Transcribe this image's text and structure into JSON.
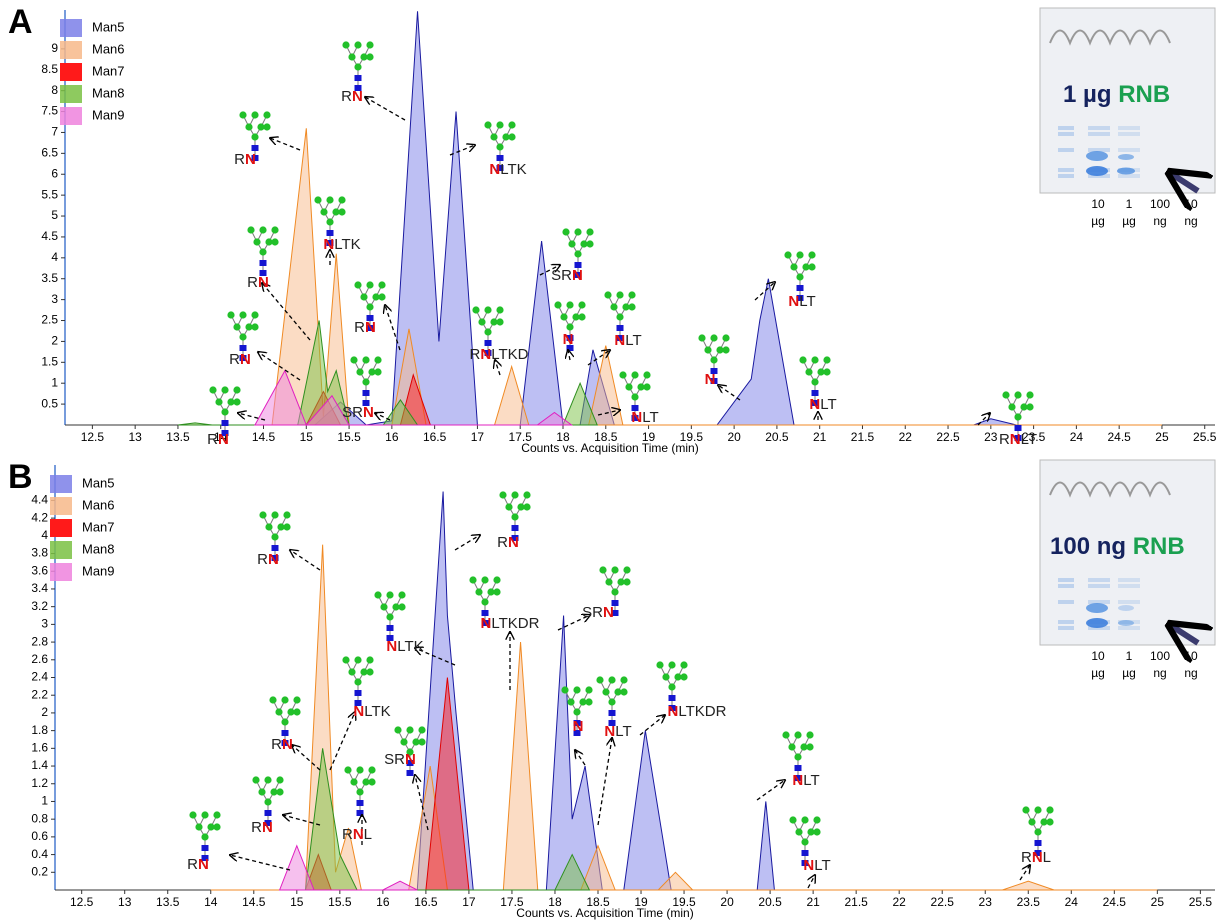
{
  "chart_data": [
    {
      "type": "area",
      "panel": "A",
      "xlabel": "Counts vs. Acquisition Time (min)",
      "xlim": [
        12.18,
        25.62
      ],
      "ylim": [
        0,
        9.93
      ],
      "xticks": [
        12.5,
        13,
        13.5,
        14,
        14.5,
        15,
        15.5,
        16,
        16.5,
        17,
        17.5,
        18,
        18.5,
        19,
        19.5,
        20,
        20.5,
        21,
        21.5,
        22,
        22.5,
        23,
        23.5,
        24,
        24.5,
        25,
        25.5
      ],
      "yticks": [
        0.5,
        1,
        1.5,
        2,
        2.5,
        3,
        3.5,
        4,
        4.5,
        5,
        5.5,
        6,
        6.5,
        7,
        7.5,
        8,
        8.5,
        9
      ],
      "series": [
        {
          "name": "Man5",
          "color": "#7b7fe8",
          "line_color": "#1a1aa0",
          "x": [
            15.1,
            15.4,
            15.7,
            16.0,
            16.3,
            16.55,
            16.75,
            17.0,
            17.5,
            17.75,
            18.0,
            18.2,
            18.35,
            18.6,
            19.8,
            20.2,
            20.3,
            20.4,
            20.7,
            22.8,
            23.0,
            23.3
          ],
          "values": [
            0,
            0.55,
            0,
            0.1,
            9.9,
            2.0,
            7.5,
            0,
            0,
            4.4,
            0,
            0,
            1.8,
            0,
            0,
            1.1,
            2.5,
            3.5,
            0,
            0,
            0.15,
            0
          ]
        },
        {
          "name": "Man6",
          "color": "#f7b98a",
          "line_color": "#f08a24",
          "x": [
            14.6,
            15.0,
            15.2,
            15.35,
            15.5,
            16.0,
            16.2,
            16.4,
            17.2,
            17.4,
            17.6,
            18.3,
            18.5,
            18.7,
            25.0
          ],
          "values": [
            0,
            7.1,
            0.2,
            4.1,
            0,
            0,
            2.3,
            0,
            0,
            1.4,
            0,
            0,
            1.9,
            0,
            0
          ]
        },
        {
          "name": "Man7",
          "color": "#ff1a1a",
          "line_color": "#e00000",
          "x": [
            15.0,
            15.2,
            15.4,
            16.1,
            16.25,
            16.45
          ],
          "values": [
            0,
            0.8,
            0,
            0,
            1.2,
            0
          ]
        },
        {
          "name": "Man8",
          "color": "#7ac143",
          "line_color": "#2f8f1f",
          "x": [
            13.5,
            13.7,
            13.9,
            14.9,
            15.15,
            15.25,
            15.35,
            15.5,
            15.9,
            16.1,
            16.3,
            18.0,
            18.2,
            18.4
          ],
          "values": [
            0,
            0.05,
            0,
            0,
            2.5,
            0.8,
            1.3,
            0,
            0,
            0.6,
            0,
            0,
            1.0,
            0
          ]
        },
        {
          "name": "Man9",
          "color": "#ee82dd",
          "line_color": "#e020c0",
          "x": [
            14.4,
            14.75,
            15.0,
            15.3,
            15.5,
            17.7,
            17.9,
            18.1
          ],
          "values": [
            0,
            1.3,
            0,
            0.7,
            0,
            0,
            0.3,
            0
          ]
        }
      ],
      "annotations": [
        "RN",
        "RN",
        "NLTK",
        "NLTK",
        "RN",
        "RN",
        "SRN",
        "RN",
        "RNLTKD",
        "NLT",
        "N",
        "SRN",
        "NLT",
        "N",
        "NLT",
        "NLT",
        "RN",
        "RNLT"
      ],
      "inset": {
        "amount": "1 µg",
        "protein": "RNB",
        "lanes": [
          {
            "amount": "10",
            "unit": "µg"
          },
          {
            "amount": "1",
            "unit": "µg"
          },
          {
            "amount": "100",
            "unit": "ng"
          },
          {
            "amount": "10",
            "unit": "ng"
          }
        ]
      }
    },
    {
      "type": "area",
      "panel": "B",
      "xlabel": "Counts vs. Acquisition Time (min)",
      "xlim": [
        12.19,
        25.67
      ],
      "ylim": [
        0,
        4.8
      ],
      "xticks": [
        12.5,
        13,
        13.5,
        14,
        14.5,
        15,
        15.5,
        16,
        16.5,
        17,
        17.5,
        18,
        18.5,
        19,
        19.5,
        20,
        20.5,
        21,
        21.5,
        22,
        22.5,
        23,
        23.5,
        24,
        24.5,
        25,
        25.5
      ],
      "yticks": [
        0.2,
        0.4,
        0.6,
        0.8,
        1,
        1.2,
        1.4,
        1.6,
        1.8,
        2,
        2.2,
        2.4,
        2.6,
        2.8,
        3,
        3.2,
        3.4,
        3.6,
        3.8,
        4,
        4.2,
        4.4
      ],
      "series": [
        {
          "name": "Man5",
          "color": "#7b7fe8",
          "line_color": "#1a1aa0",
          "x": [
            16.4,
            16.7,
            16.75,
            16.85,
            17.05,
            17.9,
            18.1,
            18.2,
            18.35,
            18.55,
            18.8,
            19.05,
            19.35,
            20.35,
            20.45,
            20.55
          ],
          "values": [
            0,
            4.5,
            3.1,
            2.0,
            0,
            0,
            3.1,
            0.8,
            1.4,
            0,
            0,
            1.8,
            0,
            0,
            1.0,
            0
          ]
        },
        {
          "name": "Man6",
          "color": "#f7b98a",
          "line_color": "#f08a24",
          "x": [
            14.0,
            15.1,
            15.3,
            15.45,
            15.6,
            15.75,
            16.3,
            16.55,
            16.75,
            17.4,
            17.6,
            17.8,
            18.3,
            18.5,
            18.7,
            19.2,
            19.4,
            19.6,
            23.2,
            23.5,
            23.8,
            25.0
          ],
          "values": [
            0,
            0,
            3.9,
            0.2,
            0.7,
            0,
            0,
            1.4,
            0,
            0,
            2.8,
            0,
            0,
            0.5,
            0,
            0,
            0.2,
            0,
            0,
            0.1,
            0,
            0
          ]
        },
        {
          "name": "Man7",
          "color": "#ff1a1a",
          "line_color": "#e00000",
          "x": [
            15.1,
            15.25,
            15.4,
            16.5,
            16.75,
            17.0
          ],
          "values": [
            0,
            0.4,
            0,
            0,
            2.4,
            0
          ]
        },
        {
          "name": "Man8",
          "color": "#7ac143",
          "line_color": "#2f8f1f",
          "x": [
            15.1,
            15.3,
            15.5,
            15.7,
            18.0,
            18.2,
            18.4
          ],
          "values": [
            0,
            1.6,
            0.4,
            0,
            0,
            0.4,
            0
          ]
        },
        {
          "name": "Man9",
          "color": "#ee82dd",
          "line_color": "#e020c0",
          "x": [
            14.8,
            15.0,
            15.2,
            16.0,
            16.2,
            16.4
          ],
          "values": [
            0,
            0.5,
            0,
            0,
            0.1,
            0
          ]
        }
      ],
      "annotations": [
        "RN",
        "RN",
        "NLTKDR",
        "SRN",
        "NLTK",
        "NLTK",
        "RN",
        "RNL",
        "SRN",
        "N",
        "NLT",
        "NLTKDR",
        "RN",
        "RN",
        "NLT",
        "NLT",
        "RNL"
      ],
      "inset": {
        "amount": "100 ng",
        "protein": "RNB",
        "lanes": [
          {
            "amount": "10",
            "unit": "µg"
          },
          {
            "amount": "1",
            "unit": "µg"
          },
          {
            "amount": "100",
            "unit": "ng"
          },
          {
            "amount": "10",
            "unit": "ng"
          }
        ]
      }
    }
  ]
}
